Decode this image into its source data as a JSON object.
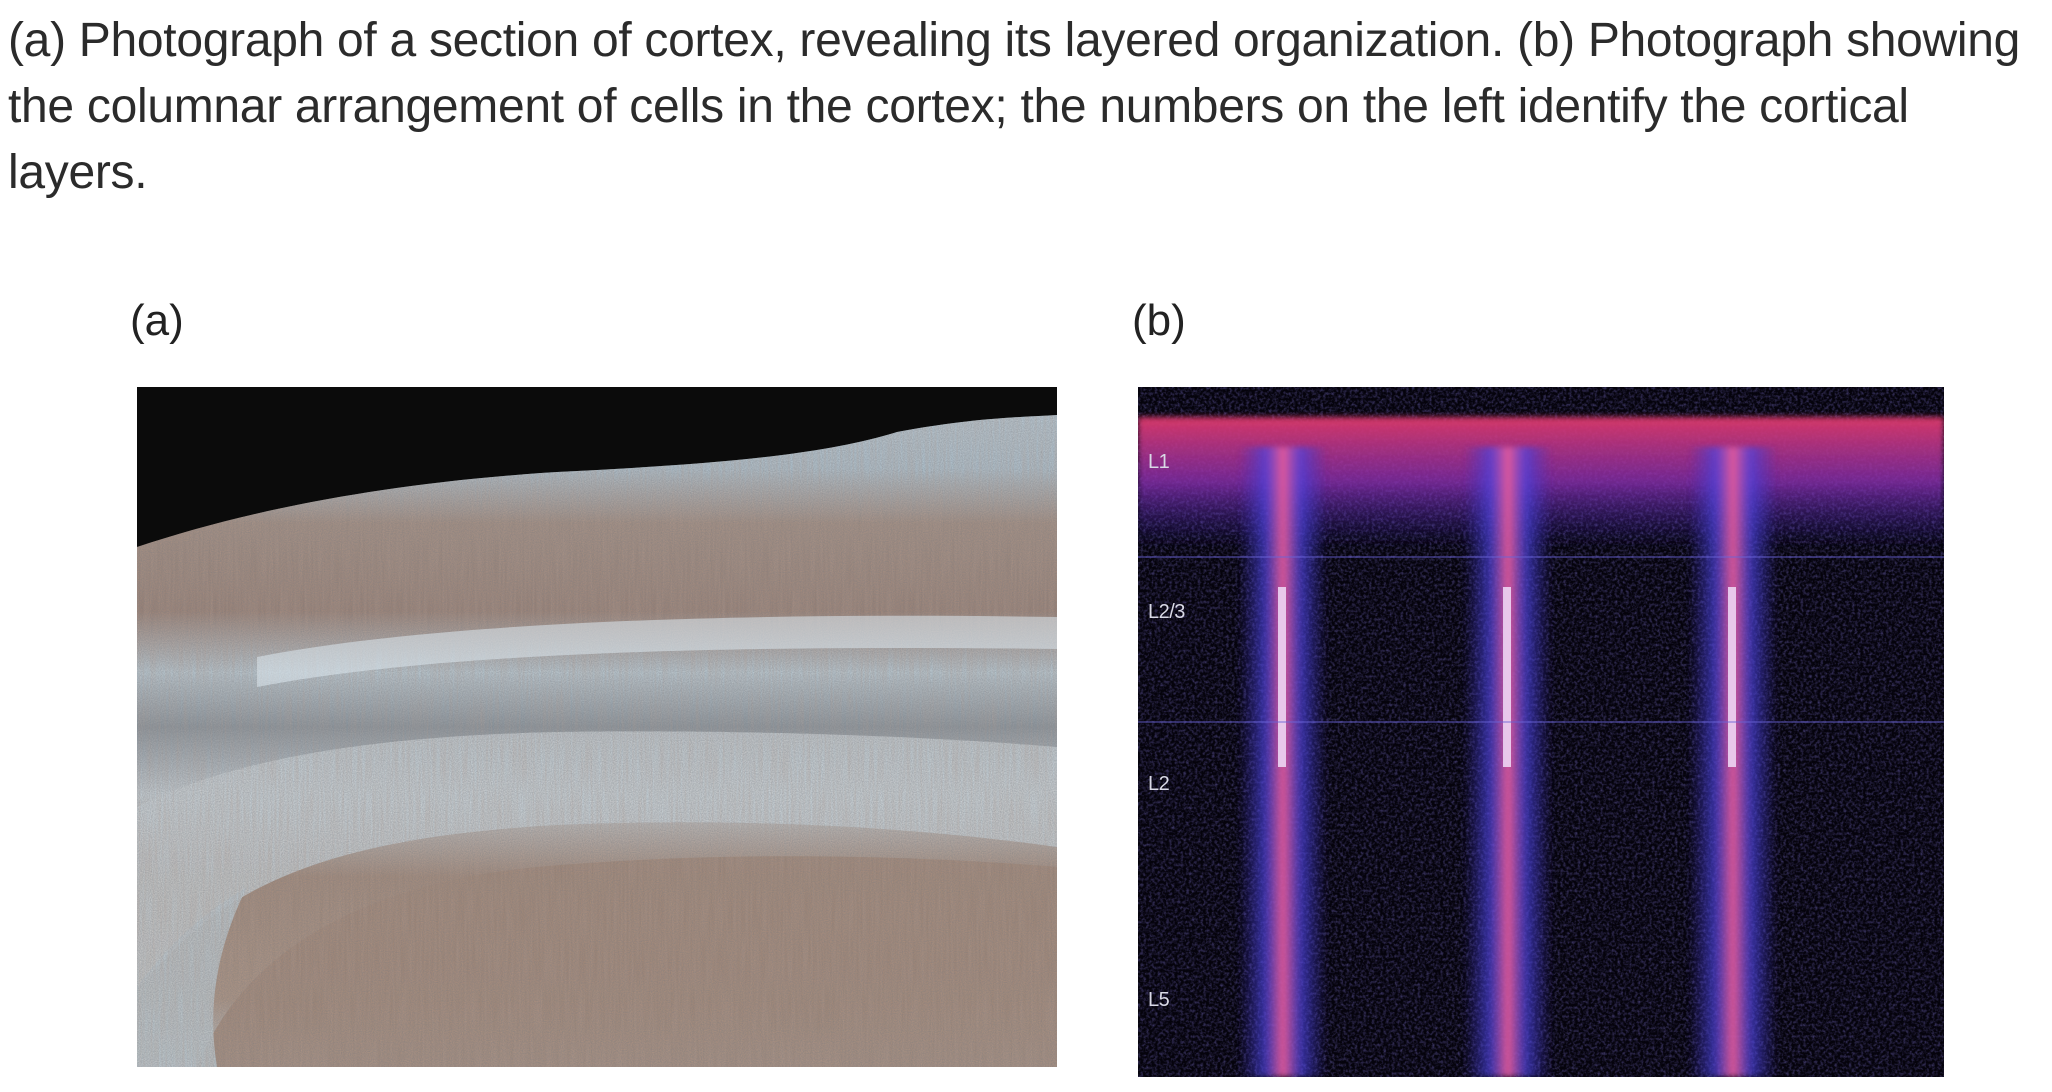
{
  "caption": "(a) Photograph of a section of cortex, revealing its layered organization. (b) Photograph showing the columnar arrangement of cells in the cortex; the numbers on the left identify the cortical layers.",
  "panels": {
    "a": {
      "label": "(a)"
    },
    "b": {
      "label": "(b)",
      "layer_labels": [
        "L1",
        "L2/3",
        "L2",
        "L5"
      ]
    }
  },
  "colors": {
    "text": "#2b2b2b",
    "tissue_blue": "#b8cfdc",
    "tissue_brown": "#a88670",
    "column_blue": "#4a3fd8",
    "column_pink": "#e0457a"
  }
}
